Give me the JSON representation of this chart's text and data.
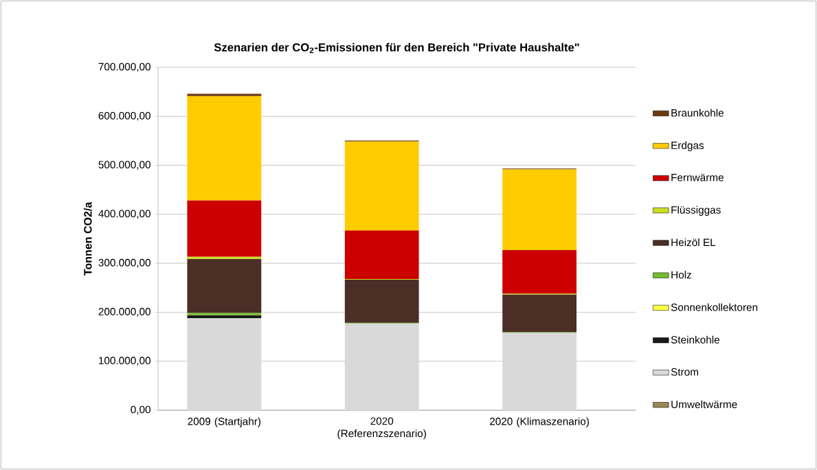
{
  "chart_data": {
    "type": "bar",
    "stacked": true,
    "title": "Szenarien der CO$_{2}$-Emissionen für den Bereich \"Private Haushalte\"",
    "ylabel": "Tonnen CO2/a",
    "categories": [
      "2009 (Startjahr)",
      "2020 (Referenzszenario)",
      "2020 (Klimaszenario)"
    ],
    "series": [
      {
        "name": "Umweltwärme",
        "color": "#998855",
        "values": [
          null,
          null,
          null
        ]
      },
      {
        "name": "Strom",
        "color": "#d9d9d9",
        "values": [
          188000,
          177000,
          158000
        ]
      },
      {
        "name": "Steinkohle",
        "color": "#1a1a1a",
        "values": [
          6000,
          null,
          null
        ]
      },
      {
        "name": "Sonnenkollektoren",
        "color": "#ffff44",
        "values": [
          null,
          null,
          null
        ]
      },
      {
        "name": "Holz",
        "color": "#77bb33",
        "values": [
          5000,
          1500,
          1500
        ]
      },
      {
        "name": "Heizöl EL",
        "color": "#4b2e26",
        "values": [
          110000,
          88000,
          77000
        ]
      },
      {
        "name": "Flüssiggas",
        "color": "#ccdd22",
        "values": [
          4500,
          1500,
          1500
        ]
      },
      {
        "name": "Fernwärme",
        "color": "#cc0000",
        "values": [
          115000,
          99000,
          89000
        ]
      },
      {
        "name": "Erdgas",
        "color": "#ffcc00",
        "values": [
          213000,
          182000,
          165000
        ]
      },
      {
        "name": "Braunkohle",
        "color": "#6b3a10",
        "values": [
          4500,
          1500,
          1500
        ]
      }
    ],
    "ylim": [
      0,
      700000
    ],
    "yticks": [
      {
        "value": 0,
        "label": "0,00"
      },
      {
        "value": 100000,
        "label": "100.000,00"
      },
      {
        "value": 200000,
        "label": "200.000,00"
      },
      {
        "value": 300000,
        "label": "300.000,00"
      },
      {
        "value": 400000,
        "label": "400.000,00"
      },
      {
        "value": 500000,
        "label": "500.000,00"
      },
      {
        "value": 600000,
        "label": "600.000,00"
      },
      {
        "value": 700000,
        "label": "700.000,00"
      }
    ],
    "grid": "y",
    "legend": "right"
  }
}
